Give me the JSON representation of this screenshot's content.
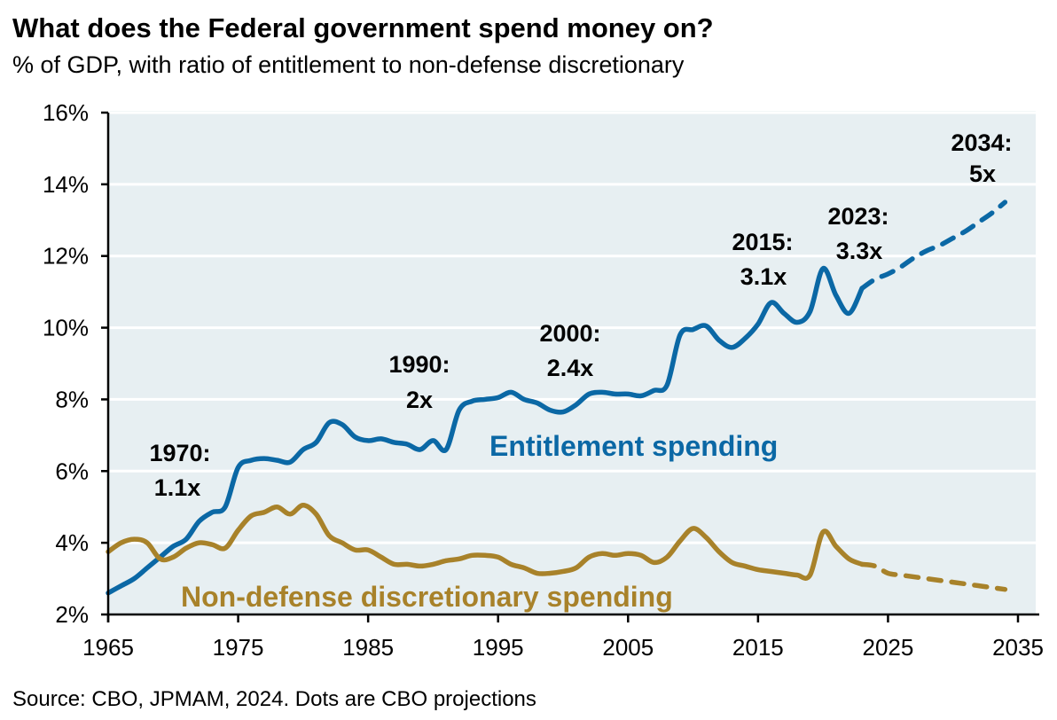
{
  "chart_data": {
    "type": "line",
    "title": "What does the Federal government spend money on?",
    "subtitle": "% of GDP, with ratio of entitlement to non-defense discretionary",
    "source": "Source: CBO, JPMAM, 2024. Dots are CBO projections",
    "xlim": [
      1965,
      2035
    ],
    "ylim": [
      2,
      16
    ],
    "x_ticks": [
      "1965",
      "1975",
      "1985",
      "1995",
      "2005",
      "2015",
      "2025",
      "2035"
    ],
    "y_ticks": [
      "2%",
      "4%",
      "6%",
      "8%",
      "10%",
      "12%",
      "14%",
      "16%"
    ],
    "grid": true,
    "series": [
      {
        "name": "Entitlement spending",
        "color": "#0b68a5",
        "actual_x": [
          1965,
          1966,
          1967,
          1968,
          1969,
          1970,
          1971,
          1972,
          1973,
          1974,
          1975,
          1976,
          1977,
          1978,
          1979,
          1980,
          1981,
          1982,
          1983,
          1984,
          1985,
          1986,
          1987,
          1988,
          1989,
          1990,
          1991,
          1992,
          1993,
          1994,
          1995,
          1996,
          1997,
          1998,
          1999,
          2000,
          2001,
          2002,
          2003,
          2004,
          2005,
          2006,
          2007,
          2008,
          2009,
          2010,
          2011,
          2012,
          2013,
          2014,
          2015,
          2016,
          2017,
          2018,
          2019,
          2020,
          2021,
          2022,
          2023
        ],
        "actual_y": [
          2.6,
          2.8,
          3.0,
          3.3,
          3.6,
          3.9,
          4.1,
          4.6,
          4.85,
          5.0,
          6.1,
          6.3,
          6.35,
          6.3,
          6.25,
          6.6,
          6.8,
          7.35,
          7.3,
          6.95,
          6.85,
          6.9,
          6.8,
          6.75,
          6.6,
          6.85,
          6.6,
          7.7,
          7.95,
          8.0,
          8.05,
          8.2,
          8.0,
          7.9,
          7.7,
          7.65,
          7.85,
          8.15,
          8.2,
          8.15,
          8.15,
          8.1,
          8.25,
          8.4,
          9.8,
          9.95,
          10.05,
          9.65,
          9.45,
          9.7,
          10.1,
          10.7,
          10.4,
          10.15,
          10.45,
          11.65,
          10.9,
          10.4,
          11.1
        ],
        "projected_x": [
          2023,
          2024,
          2025,
          2026,
          2027,
          2028,
          2029,
          2030,
          2031,
          2032,
          2033,
          2034
        ],
        "projected_y": [
          11.1,
          11.35,
          11.5,
          11.7,
          11.95,
          12.15,
          12.3,
          12.5,
          12.7,
          12.95,
          13.2,
          13.5
        ]
      },
      {
        "name": "Non-defense discretionary spending",
        "color": "#a8822a",
        "actual_x": [
          1965,
          1966,
          1967,
          1968,
          1969,
          1970,
          1971,
          1972,
          1973,
          1974,
          1975,
          1976,
          1977,
          1978,
          1979,
          1980,
          1981,
          1982,
          1983,
          1984,
          1985,
          1986,
          1987,
          1988,
          1989,
          1990,
          1991,
          1992,
          1993,
          1994,
          1995,
          1996,
          1997,
          1998,
          1999,
          2000,
          2001,
          2002,
          2003,
          2004,
          2005,
          2006,
          2007,
          2008,
          2009,
          2010,
          2011,
          2012,
          2013,
          2014,
          2015,
          2016,
          2017,
          2018,
          2019,
          2020,
          2021,
          2022,
          2023
        ],
        "actual_y": [
          3.75,
          4.0,
          4.1,
          4.0,
          3.55,
          3.6,
          3.85,
          4.0,
          3.95,
          3.85,
          4.35,
          4.75,
          4.85,
          5.0,
          4.8,
          5.05,
          4.8,
          4.2,
          4.0,
          3.8,
          3.8,
          3.6,
          3.4,
          3.4,
          3.35,
          3.4,
          3.5,
          3.55,
          3.65,
          3.65,
          3.6,
          3.4,
          3.3,
          3.15,
          3.15,
          3.2,
          3.3,
          3.6,
          3.7,
          3.65,
          3.7,
          3.65,
          3.45,
          3.6,
          4.05,
          4.4,
          4.15,
          3.75,
          3.45,
          3.35,
          3.25,
          3.2,
          3.15,
          3.1,
          3.1,
          4.3,
          3.9,
          3.55,
          3.4
        ],
        "projected_x": [
          2023,
          2024,
          2025,
          2026,
          2027,
          2028,
          2029,
          2030,
          2031,
          2032,
          2033,
          2034
        ],
        "projected_y": [
          3.4,
          3.35,
          3.15,
          3.1,
          3.05,
          3.0,
          2.95,
          2.9,
          2.85,
          2.8,
          2.75,
          2.7
        ]
      }
    ],
    "annotations": [
      {
        "year": "1970:",
        "ratio": "1.1x"
      },
      {
        "year": "1990:",
        "ratio": "2x"
      },
      {
        "year": "2000:",
        "ratio": "2.4x"
      },
      {
        "year": "2015:",
        "ratio": "3.1x"
      },
      {
        "year": "2023:",
        "ratio": "3.3x"
      },
      {
        "year": "2034:",
        "ratio": "5x"
      }
    ],
    "plot_background": "#e7eff2"
  }
}
